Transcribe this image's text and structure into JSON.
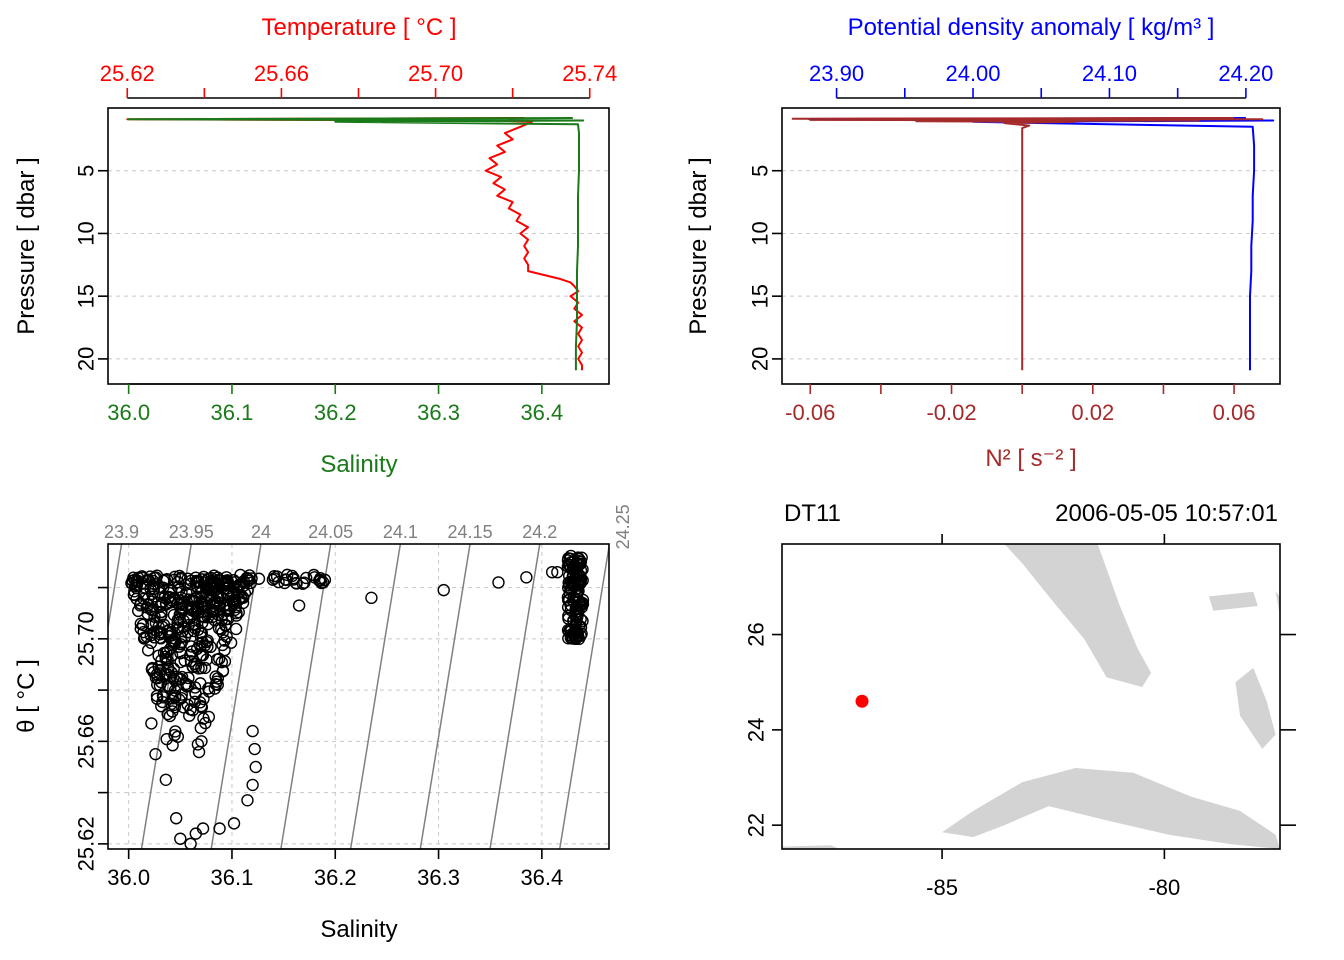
{
  "colors": {
    "temperature": "#ff0000",
    "salinity": "#1a7a1a",
    "density": "#0000ff",
    "n2": "#a52a2a",
    "isopycnal": "#808080",
    "land": "#d3d3d3",
    "station": "#ff0000"
  },
  "map": {
    "station_name": "DT11",
    "datetime": "2006-05-05 10:57:01"
  },
  "chart_data": [
    {
      "id": "profile-temperature-salinity",
      "type": "line",
      "ylabel": "Pressure [ dbar ]",
      "ylim": [
        22,
        0
      ],
      "y_ticks": [
        5,
        10,
        15,
        20
      ],
      "grid": true,
      "top_axis": {
        "label": "Temperature [ °C ]",
        "lim": [
          25.615,
          25.745
        ],
        "ticks": [
          25.62,
          25.64,
          25.66,
          25.68,
          25.7,
          25.72,
          25.74
        ],
        "tick_labels": [
          "25.62",
          "",
          "25.66",
          "",
          "25.70",
          "",
          "25.74"
        ]
      },
      "bottom_axis": {
        "label": "Salinity",
        "lim": [
          35.98,
          36.465
        ],
        "ticks": [
          36.0,
          36.1,
          36.2,
          36.3,
          36.4
        ],
        "tick_labels": [
          "36.0",
          "36.1",
          "36.2",
          "36.3",
          "36.4"
        ]
      },
      "series": [
        {
          "key": "temperature",
          "axis": "top",
          "pressure": [
            0.8,
            0.9,
            1.0,
            1.1,
            1.5,
            2.0,
            2.5,
            3.0,
            3.5,
            4.0,
            4.5,
            5.0,
            5.5,
            6.0,
            6.5,
            7.0,
            7.5,
            8.0,
            8.5,
            9.0,
            9.5,
            10.0,
            10.5,
            11.0,
            11.5,
            12.0,
            12.5,
            13.0,
            13.3,
            13.6,
            13.9,
            14.2,
            14.6,
            15.0,
            15.5,
            16.0,
            16.5,
            17.0,
            17.5,
            18.0,
            18.5,
            19.0,
            19.5,
            20.0,
            20.5,
            20.9
          ],
          "value": [
            25.723,
            25.62,
            25.715,
            25.725,
            25.722,
            25.718,
            25.72,
            25.716,
            25.718,
            25.714,
            25.716,
            25.713,
            25.717,
            25.715,
            25.718,
            25.716,
            25.72,
            25.719,
            25.722,
            25.721,
            25.724,
            25.722,
            25.724,
            25.723,
            25.724,
            25.723,
            25.724,
            25.724,
            25.728,
            25.732,
            25.735,
            25.736,
            25.737,
            25.735,
            25.737,
            25.736,
            25.738,
            25.736,
            25.738,
            25.737,
            25.738,
            25.737,
            25.738,
            25.737,
            25.738,
            25.738
          ]
        },
        {
          "key": "salinity",
          "axis": "bottom",
          "pressure": [
            0.8,
            0.9,
            1.0,
            1.1,
            1.3,
            2.0,
            3.0,
            5.0,
            7.0,
            9.0,
            11.0,
            13.0,
            15.0,
            17.0,
            19.0,
            20.9
          ],
          "value": [
            36.43,
            36.0,
            36.44,
            36.2,
            36.435,
            36.436,
            36.436,
            36.436,
            36.435,
            36.435,
            36.435,
            36.434,
            36.434,
            36.434,
            36.433,
            36.433
          ]
        }
      ]
    },
    {
      "id": "profile-density-n2",
      "type": "line",
      "ylabel": "Pressure [ dbar ]",
      "ylim": [
        22,
        0
      ],
      "y_ticks": [
        5,
        10,
        15,
        20
      ],
      "grid": true,
      "top_axis": {
        "label": "Potential density anomaly [ kg/m³ ]",
        "lim": [
          23.86,
          24.225
        ],
        "ticks": [
          23.9,
          23.95,
          24.0,
          24.05,
          24.1,
          24.15,
          24.2
        ],
        "tick_labels": [
          "23.90",
          "",
          "24.00",
          "",
          "24.10",
          "",
          "24.20"
        ]
      },
      "bottom_axis": {
        "label": "N² [ s⁻² ]",
        "lim": [
          -0.068,
          0.073
        ],
        "ticks": [
          -0.06,
          -0.04,
          -0.02,
          0.0,
          0.02,
          0.04,
          0.06
        ],
        "tick_labels": [
          "-0.06",
          "",
          "-0.02",
          "",
          "0.02",
          "",
          "0.06"
        ]
      },
      "series": [
        {
          "key": "density",
          "axis": "top",
          "pressure": [
            0.8,
            0.9,
            1.0,
            1.1,
            1.5,
            3.0,
            5.0,
            7.0,
            9.0,
            11.0,
            13.0,
            15.0,
            17.0,
            19.0,
            20.9
          ],
          "value": [
            24.2,
            23.88,
            24.22,
            24.0,
            24.205,
            24.206,
            24.206,
            24.205,
            24.205,
            24.204,
            24.204,
            24.203,
            24.203,
            24.203,
            24.203
          ]
        },
        {
          "key": "n2",
          "axis": "bottom",
          "pressure": [
            0.8,
            0.85,
            0.9,
            0.95,
            1.0,
            1.05,
            1.1,
            1.2,
            1.4,
            1.6,
            2.0,
            5.0,
            10.0,
            15.0,
            20.9
          ],
          "value": [
            0.06,
            -0.065,
            0.068,
            -0.06,
            0.05,
            -0.03,
            0.015,
            -0.005,
            0.002,
            0.0,
            0.0,
            0.0,
            0.0,
            0.0,
            0.0
          ]
        }
      ]
    },
    {
      "id": "ts-diagram",
      "type": "scatter",
      "xlabel": "Salinity",
      "ylabel": "θ [ °C ]",
      "xlim": [
        35.98,
        36.465
      ],
      "ylim": [
        25.618,
        25.737
      ],
      "x_ticks": [
        36.0,
        36.1,
        36.2,
        36.3,
        36.4
      ],
      "y_ticks": [
        25.62,
        25.64,
        25.66,
        25.68,
        25.7,
        25.72
      ],
      "y_tick_labels": [
        "25.62",
        "",
        "25.66",
        "",
        "25.70",
        ""
      ],
      "grid": true,
      "isopycnal_labels": [
        "23.9",
        "23.95",
        "24",
        "24.05",
        "24.1",
        "24.15",
        "24.2",
        "24.25"
      ],
      "isopycnal_values": [
        23.9,
        23.95,
        24.0,
        24.05,
        24.1,
        24.15,
        24.2,
        24.25
      ],
      "cluster_summary": [
        {
          "salinity_range": [
            35.995,
            36.12
          ],
          "temperature_range": [
            25.655,
            25.724
          ]
        },
        {
          "salinity_range": [
            36.425,
            36.44
          ],
          "temperature_range": [
            25.7,
            25.733
          ]
        }
      ],
      "points": [
        [
          36.05,
          25.622
        ],
        [
          36.06,
          25.62
        ],
        [
          36.065,
          25.624
        ],
        [
          36.072,
          25.626
        ],
        [
          36.088,
          25.626
        ],
        [
          36.102,
          25.628
        ],
        [
          36.115,
          25.637
        ],
        [
          36.046,
          25.63
        ],
        [
          36.036,
          25.645
        ],
        [
          36.026,
          25.655
        ],
        [
          36.022,
          25.667
        ],
        [
          36.12,
          25.643
        ],
        [
          36.123,
          25.65
        ],
        [
          36.122,
          25.657
        ],
        [
          36.12,
          25.664
        ],
        [
          36.19,
          25.723
        ],
        [
          36.185,
          25.723
        ],
        [
          36.18,
          25.724
        ],
        [
          36.165,
          25.713
        ],
        [
          36.235,
          25.716
        ],
        [
          36.305,
          25.719
        ],
        [
          36.358,
          25.722
        ],
        [
          36.385,
          25.724
        ],
        [
          36.41,
          25.726
        ],
        [
          36.415,
          25.726
        ]
      ]
    },
    {
      "id": "station-map",
      "type": "scatter",
      "xlim": [
        -88.6,
        -77.4
      ],
      "ylim": [
        21.5,
        27.9
      ],
      "x_ticks": [
        -85,
        -80
      ],
      "y_ticks": [
        22,
        24,
        26
      ],
      "station": {
        "lon": -86.8,
        "lat": 24.6
      },
      "land_regions": [
        {
          "name": "florida",
          "lonlat": [
            [
              -83.6,
              27.9
            ],
            [
              -81.5,
              27.9
            ],
            [
              -81.0,
              26.6
            ],
            [
              -80.6,
              25.7
            ],
            [
              -80.3,
              25.2
            ],
            [
              -80.5,
              24.9
            ],
            [
              -81.3,
              25.1
            ],
            [
              -81.8,
              25.9
            ],
            [
              -82.6,
              26.8
            ],
            [
              -83.2,
              27.5
            ]
          ]
        },
        {
          "name": "bahamas-north",
          "lonlat": [
            [
              -79.0,
              26.8
            ],
            [
              -78.0,
              26.9
            ],
            [
              -77.9,
              26.6
            ],
            [
              -78.9,
              26.5
            ]
          ]
        },
        {
          "name": "bahamas-andros",
          "lonlat": [
            [
              -78.0,
              25.3
            ],
            [
              -77.7,
              24.6
            ],
            [
              -77.5,
              23.9
            ],
            [
              -77.8,
              23.6
            ],
            [
              -78.3,
              24.3
            ],
            [
              -78.4,
              25.0
            ]
          ]
        },
        {
          "name": "bahamas-edge",
          "lonlat": [
            [
              -77.5,
              26.9
            ],
            [
              -77.4,
              26.4
            ],
            [
              -77.2,
              26.6
            ]
          ]
        },
        {
          "name": "cuba",
          "lonlat": [
            [
              -85.0,
              21.85
            ],
            [
              -84.3,
              22.3
            ],
            [
              -83.2,
              22.9
            ],
            [
              -82.0,
              23.2
            ],
            [
              -80.7,
              23.1
            ],
            [
              -79.4,
              22.6
            ],
            [
              -78.3,
              22.3
            ],
            [
              -77.5,
              21.8
            ],
            [
              -77.4,
              21.5
            ],
            [
              -78.5,
              21.6
            ],
            [
              -79.9,
              21.8
            ],
            [
              -81.3,
              22.1
            ],
            [
              -82.6,
              22.4
            ],
            [
              -83.6,
              22.0
            ],
            [
              -84.3,
              21.75
            ]
          ]
        },
        {
          "name": "yucatan",
          "lonlat": [
            [
              -88.6,
              21.55
            ],
            [
              -87.5,
              21.58
            ],
            [
              -87.3,
              21.5
            ],
            [
              -88.6,
              21.5
            ]
          ]
        }
      ]
    }
  ]
}
